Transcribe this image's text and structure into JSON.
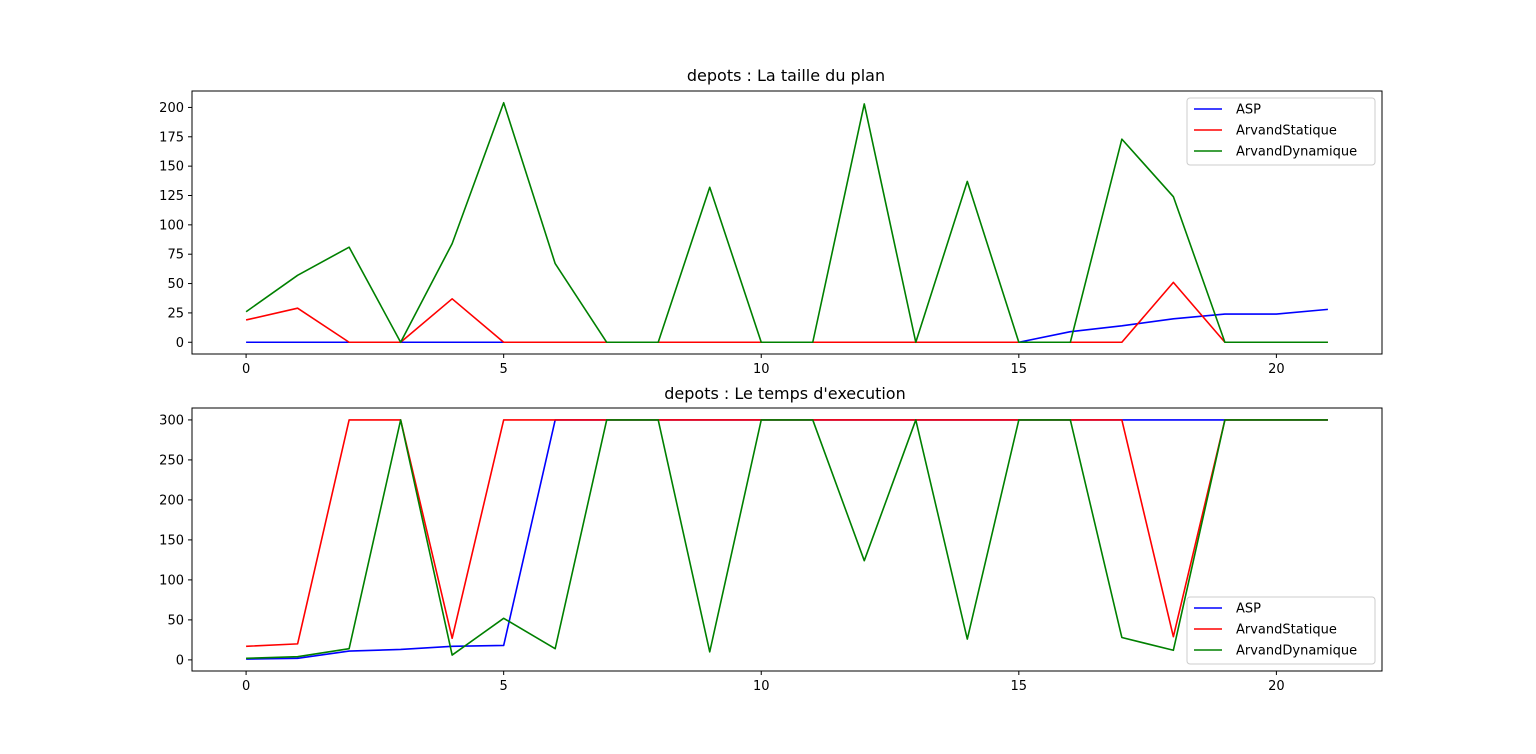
{
  "chart_data": [
    {
      "type": "line",
      "title": "depots : La taille du plan",
      "xlabel": "",
      "ylabel": "",
      "x": [
        0,
        1,
        2,
        3,
        4,
        5,
        6,
        7,
        8,
        9,
        10,
        11,
        12,
        13,
        14,
        15,
        16,
        17,
        18,
        19,
        20,
        21
      ],
      "xlim": [
        -1.05,
        22.05
      ],
      "ylim": [
        -10,
        214
      ],
      "x_ticks": [
        0,
        5,
        10,
        15,
        20
      ],
      "y_ticks": [
        0,
        25,
        50,
        75,
        100,
        125,
        150,
        175,
        200
      ],
      "grid": false,
      "legend_position": "top-right",
      "series": [
        {
          "name": "ASP",
          "color": "#0000ff",
          "values": [
            0,
            0,
            0,
            0,
            0,
            0,
            0,
            0,
            0,
            0,
            0,
            0,
            0,
            0,
            0,
            0,
            9,
            14,
            20,
            24,
            24,
            28
          ]
        },
        {
          "name": "ArvandStatique",
          "color": "#ff0000",
          "values": [
            19,
            29,
            0,
            0,
            37,
            0,
            0,
            0,
            0,
            0,
            0,
            0,
            0,
            0,
            0,
            0,
            0,
            0,
            51,
            0,
            0,
            0
          ]
        },
        {
          "name": "ArvandDynamique",
          "color": "#008000",
          "values": [
            26,
            57,
            81,
            0,
            84,
            204,
            67,
            0,
            0,
            132,
            0,
            0,
            203,
            0,
            137,
            0,
            0,
            173,
            124,
            0,
            0,
            0
          ]
        }
      ]
    },
    {
      "type": "line",
      "title": "depots : Le temps d'execution",
      "xlabel": "",
      "ylabel": "",
      "x": [
        0,
        1,
        2,
        3,
        4,
        5,
        6,
        7,
        8,
        9,
        10,
        11,
        12,
        13,
        14,
        15,
        16,
        17,
        18,
        19,
        20,
        21
      ],
      "xlim": [
        -1.05,
        22.05
      ],
      "ylim": [
        -13.9,
        314.9
      ],
      "x_ticks": [
        0,
        5,
        10,
        15,
        20
      ],
      "y_ticks": [
        0,
        50,
        100,
        150,
        200,
        250,
        300
      ],
      "grid": false,
      "legend_position": "bottom-right",
      "series": [
        {
          "name": "ASP",
          "color": "#0000ff",
          "values": [
            1,
            2,
            11,
            13,
            17,
            18,
            300,
            300,
            300,
            300,
            300,
            300,
            300,
            300,
            300,
            300,
            300,
            300,
            300,
            300,
            300,
            300
          ]
        },
        {
          "name": "ArvandStatique",
          "color": "#ff0000",
          "values": [
            17,
            20,
            300,
            300,
            27,
            300,
            300,
            300,
            300,
            300,
            300,
            300,
            300,
            300,
            300,
            300,
            300,
            300,
            29,
            300,
            300,
            300
          ]
        },
        {
          "name": "ArvandDynamique",
          "color": "#008000",
          "values": [
            2,
            4,
            14,
            300,
            6,
            52,
            14,
            300,
            300,
            10,
            300,
            300,
            124,
            300,
            26,
            300,
            300,
            28,
            12,
            300,
            300,
            300
          ]
        }
      ]
    }
  ]
}
